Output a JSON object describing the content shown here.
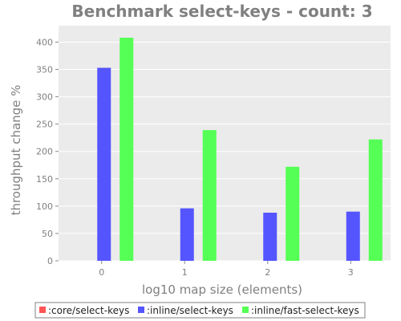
{
  "chart_data": {
    "type": "bar",
    "title": "Benchmark select-keys - count: 3",
    "xlabel": "log10 map size (elements)",
    "ylabel": "throughput change %",
    "categories": [
      "0",
      "1",
      "2",
      "3"
    ],
    "ylim": [
      0,
      430
    ],
    "yticks": [
      0,
      50,
      100,
      150,
      200,
      250,
      300,
      350,
      400
    ],
    "grid": true,
    "legend_position": "bottom",
    "series": [
      {
        "name": ":core/select-keys",
        "color": "#ff5555",
        "values": [
          0,
          0,
          0,
          0
        ]
      },
      {
        "name": ":inline/select-keys",
        "color": "#5555ff",
        "values": [
          353,
          96,
          88,
          90
        ]
      },
      {
        "name": ":inline/fast-select-keys",
        "color": "#55ff55",
        "values": [
          408,
          239,
          172,
          222
        ]
      }
    ]
  },
  "colors": {
    "plot_background": "#ebebeb",
    "gridline": "#ffffff",
    "text": "#808080"
  }
}
